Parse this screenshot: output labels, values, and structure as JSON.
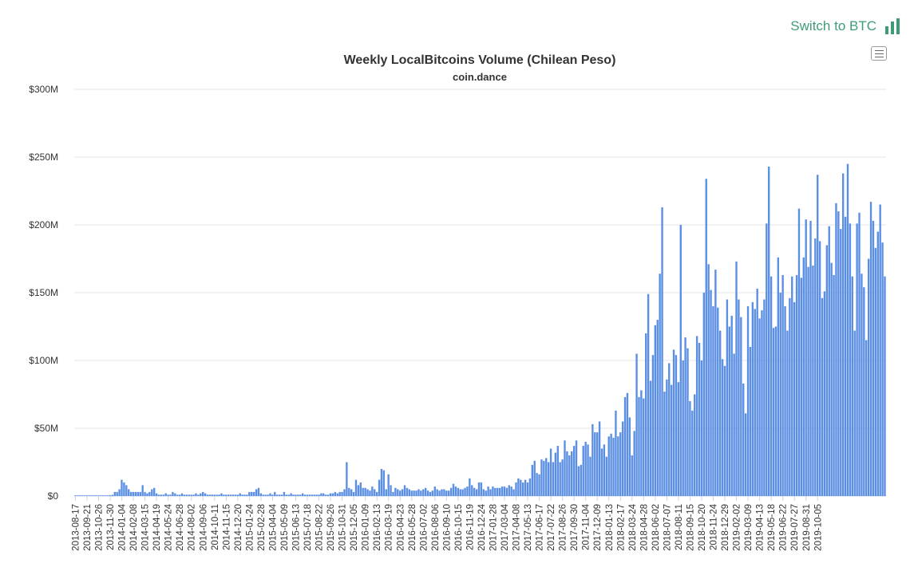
{
  "switch_button": {
    "label": "Switch to BTC",
    "icon": "bar-chart-icon",
    "color": "#3d9c76"
  },
  "menu_button": {
    "icon": "hamburger-menu-icon"
  },
  "chart_data": {
    "type": "bar",
    "title": "Weekly LocalBitcoins Volume (Chilean Peso)",
    "subtitle": "coin.dance",
    "xlabel": "",
    "ylabel": "",
    "ylim": [
      0,
      300000000
    ],
    "yticks": [
      0,
      50000000,
      100000000,
      150000000,
      200000000,
      250000000,
      300000000
    ],
    "ytick_labels": [
      "$0",
      "$50M",
      "$100M",
      "$150M",
      "$200M",
      "$250M",
      "$300M"
    ],
    "grid": true,
    "bar_color": "#5b8fe3",
    "start_week": "2013-08-17",
    "week_step_days": 7,
    "tick_every_weeks": 5,
    "x_tick_labels": [
      "2013-08-17",
      "2013-09-21",
      "2013-10-26",
      "2013-11-30",
      "2014-01-04",
      "2014-02-08",
      "2014-03-15",
      "2014-04-19",
      "2014-05-24",
      "2014-06-28",
      "2014-08-02",
      "2014-09-06",
      "2014-10-11",
      "2014-11-15",
      "2014-12-20",
      "2015-01-24",
      "2015-02-28",
      "2015-04-04",
      "2015-05-09",
      "2015-06-13",
      "2015-07-18",
      "2015-08-22",
      "2015-09-26",
      "2015-10-31",
      "2015-12-05",
      "2016-01-09",
      "2016-02-13",
      "2016-03-19",
      "2016-04-23",
      "2016-05-28",
      "2016-07-02",
      "2016-08-06",
      "2016-09-10",
      "2016-10-15",
      "2016-11-19",
      "2016-12-24",
      "2017-01-28",
      "2017-03-04",
      "2017-04-08",
      "2017-05-13",
      "2017-06-17",
      "2017-07-22",
      "2017-08-26",
      "2017-09-30",
      "2017-11-04",
      "2017-12-09",
      "2018-01-13",
      "2018-02-17",
      "2018-03-24",
      "2018-04-28",
      "2018-06-02",
      "2018-07-07",
      "2018-08-11",
      "2018-09-15",
      "2018-10-20",
      "2018-11-24",
      "2018-12-29",
      "2019-02-02",
      "2019-03-09",
      "2019-04-13",
      "2019-05-18",
      "2019-06-22",
      "2019-07-27",
      "2019-08-31",
      "2019-10-05"
    ],
    "values_millions": [
      0.3,
      0.4,
      0.3,
      0.2,
      0.3,
      0.3,
      0.4,
      0.3,
      0.2,
      0.2,
      0.3,
      0.2,
      0.3,
      0.4,
      0.5,
      0.6,
      0.9,
      3,
      3,
      5,
      12,
      10,
      8,
      5,
      3,
      3,
      3,
      3,
      3,
      8,
      3,
      2,
      3,
      5,
      6,
      2,
      1,
      1,
      1,
      2,
      1,
      1,
      3,
      2,
      1,
      1,
      2,
      1,
      1,
      1,
      1,
      1,
      2,
      1,
      2,
      3,
      2,
      1,
      1,
      1,
      1,
      1,
      1,
      2,
      1,
      1,
      1,
      1,
      1,
      1,
      1,
      2,
      1,
      1,
      1,
      3,
      3,
      3,
      5,
      6,
      2,
      1,
      1,
      1,
      2,
      1,
      3,
      1,
      1,
      1,
      3,
      1,
      1,
      2,
      1,
      1,
      1,
      1,
      2,
      1,
      1,
      1,
      1,
      1,
      1,
      1,
      2,
      2,
      1,
      1,
      2,
      2,
      3,
      2,
      3,
      3,
      5,
      25,
      6,
      5,
      3,
      12,
      8,
      10,
      6,
      6,
      5,
      4,
      7,
      5,
      3,
      12,
      20,
      19,
      5,
      16,
      8,
      3,
      6,
      5,
      4,
      5,
      8,
      6,
      5,
      4,
      4,
      4,
      5,
      4,
      5,
      6,
      4,
      3,
      4,
      7,
      5,
      4,
      5,
      5,
      4,
      4,
      6,
      9,
      7,
      6,
      5,
      5,
      6,
      7,
      13,
      8,
      6,
      5,
      10,
      10,
      5,
      4,
      7,
      5,
      7,
      6,
      6,
      6,
      7,
      7,
      6,
      8,
      7,
      5,
      10,
      13,
      12,
      10,
      12,
      10,
      13,
      23,
      26,
      17,
      16,
      27,
      26,
      28,
      25,
      35,
      25,
      32,
      37,
      25,
      27,
      41,
      33,
      30,
      33,
      37,
      41,
      22,
      23,
      37,
      40,
      38,
      29,
      53,
      47,
      47,
      55,
      35,
      38,
      29,
      44,
      46,
      43,
      63,
      44,
      47,
      55,
      73,
      76,
      58,
      30,
      48,
      105,
      73,
      78,
      72,
      120,
      149,
      85,
      104,
      126,
      130,
      164,
      213,
      77,
      86,
      98,
      82,
      108,
      104,
      84,
      200,
      100,
      117,
      109,
      70,
      63,
      75,
      118,
      113,
      100,
      150,
      234,
      171,
      152,
      140,
      167,
      139,
      122,
      101,
      96,
      145,
      125,
      133,
      105,
      173,
      145,
      132,
      83,
      61,
      140,
      110,
      143,
      138,
      153,
      131,
      137,
      145,
      201,
      243,
      162,
      124,
      125,
      176,
      150,
      163,
      140,
      122,
      146,
      162,
      143,
      163,
      212,
      161,
      176,
      204,
      169,
      203,
      170,
      190,
      237,
      188,
      146,
      151,
      185,
      199,
      172,
      163,
      216,
      210,
      197,
      238,
      206,
      245,
      201,
      162,
      122,
      201,
      209,
      164,
      154,
      115,
      175,
      217,
      203,
      183,
      195,
      215,
      187,
      162
    ]
  }
}
